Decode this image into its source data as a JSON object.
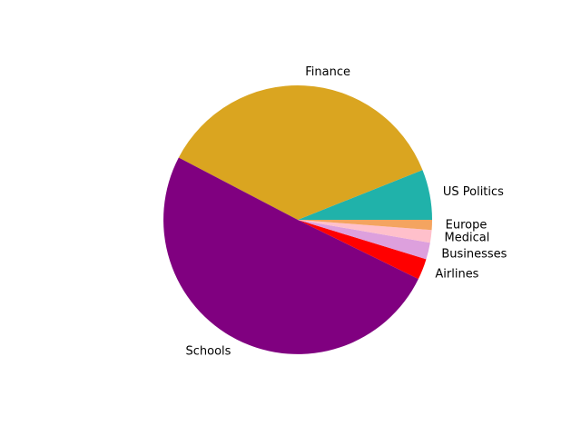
{
  "chart_data": {
    "type": "pie",
    "start_angle_deg": 0,
    "direction": "counterclockwise",
    "slices": [
      {
        "label": "US Politics",
        "value": 6.0,
        "color": "#20b2aa"
      },
      {
        "label": "Finance",
        "value": 36.0,
        "color": "#daa520"
      },
      {
        "label": "Schools",
        "value": 50.0,
        "color": "#800080"
      },
      {
        "label": "Airlines",
        "value": 2.5,
        "color": "#ff0000"
      },
      {
        "label": "Businesses",
        "value": 2.0,
        "color": "#dda0dd"
      },
      {
        "label": "Medical",
        "value": 1.5,
        "color": "#ffc0cb"
      },
      {
        "label": "Europe",
        "value": 1.2,
        "color": "#f4a460"
      }
    ]
  }
}
